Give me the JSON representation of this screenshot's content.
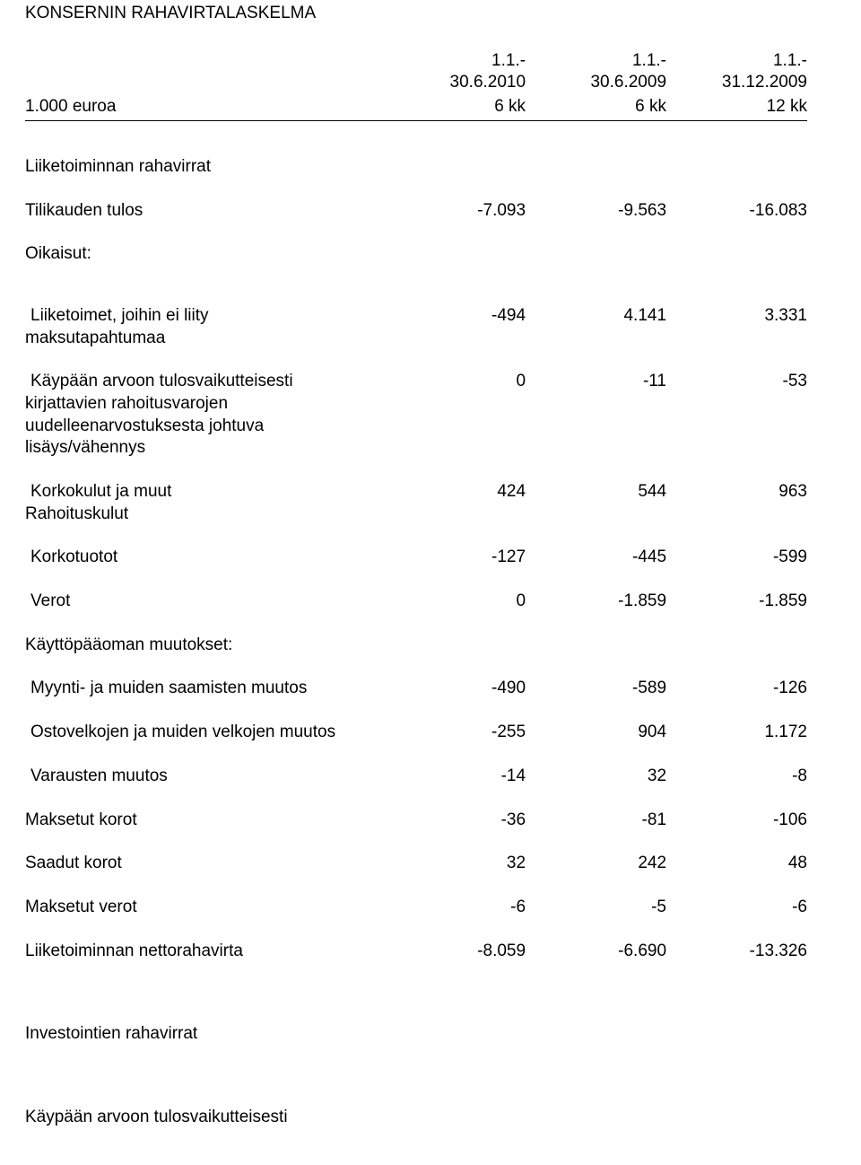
{
  "title": "KONSERNIN RAHAVIRTALASKELMA",
  "periods": {
    "p1_line1": "1.1.-",
    "p1_line2": "30.6.2010",
    "p2_line1": "1.1.-",
    "p2_line2": "30.6.2009",
    "p3_line1": "1.1.-",
    "p3_line2": "31.12.2009"
  },
  "units": {
    "label": "1.000 euroa",
    "u1": "6 kk",
    "u2": "6 kk",
    "u3": "12 kk"
  },
  "sections": {
    "operating_heading": "Liiketoiminnan rahavirrat",
    "profit": {
      "label": "Tilikauden tulos",
      "v1": "-7.093",
      "v2": "-9.563",
      "v3": "-16.083"
    },
    "adjustments_heading": "Oikaisut:",
    "nonmonetary": {
      "line1": "Liiketoimet, joihin ei liity",
      "line2": "maksutapahtumaa",
      "v1": "-494",
      "v2": "4.141",
      "v3": "3.331"
    },
    "fairvalue": {
      "line1": "Käypään arvoon tulosvaikutteisesti",
      "line2": "kirjattavien rahoitusvarojen",
      "line3": "uudelleenarvostuksesta johtuva",
      "line4": "lisäys/vähennys",
      "v1": "0",
      "v2": "-11",
      "v3": "-53"
    },
    "interest_exp": {
      "line1": "Korkokulut ja muut",
      "line2": "Rahoituskulut",
      "v1": "424",
      "v2": "544",
      "v3": "963"
    },
    "interest_inc": {
      "label": "Korkotuotot",
      "v1": "-127",
      "v2": "-445",
      "v3": "-599"
    },
    "taxes": {
      "label": "Verot",
      "v1": "0",
      "v2": "-1.859",
      "v3": "-1.859"
    },
    "wc_heading": "Käyttöpääoman muutokset:",
    "receivables": {
      "label": "Myynti- ja muiden saamisten muutos",
      "v1": "-490",
      "v2": "-589",
      "v3": "-126"
    },
    "payables": {
      "label": "Ostovelkojen ja muiden velkojen muutos",
      "v1": "-255",
      "v2": "904",
      "v3": "1.172"
    },
    "provisions": {
      "label": "Varausten muutos",
      "v1": "-14",
      "v2": "32",
      "v3": "-8"
    },
    "interest_paid": {
      "label": "Maksetut korot",
      "v1": "-36",
      "v2": "-81",
      "v3": "-106"
    },
    "interest_recv": {
      "label": "Saadut korot",
      "v1": "32",
      "v2": "242",
      "v3": "48"
    },
    "taxes_paid": {
      "label": "Maksetut verot",
      "v1": "-6",
      "v2": "-5",
      "v3": "-6"
    },
    "net_operating": {
      "label": "Liiketoiminnan nettorahavirta",
      "v1": "-8.059",
      "v2": "-6.690",
      "v3": "-13.326"
    },
    "investing_heading": "Investointien rahavirrat",
    "fairvalue2_line1": "Käypään arvoon tulosvaikutteisesti"
  }
}
